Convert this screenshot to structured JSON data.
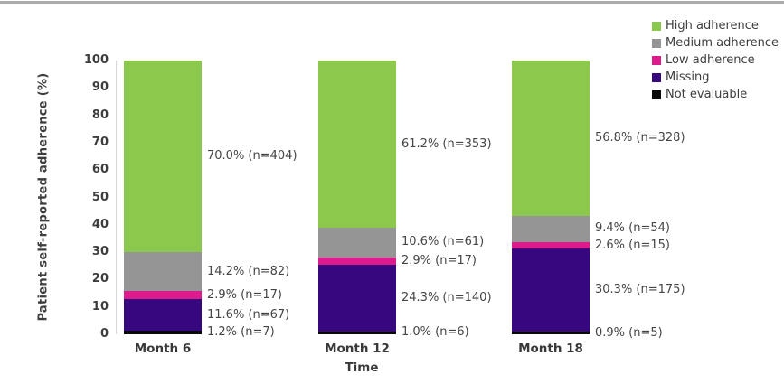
{
  "chart_data": {
    "type": "bar",
    "variant": "stacked-percent",
    "title": "",
    "xlabel": "Time",
    "ylabel": "Patient self-reported adherence (%)",
    "ylim": [
      0,
      100
    ],
    "yticks": [
      0,
      10,
      20,
      30,
      40,
      50,
      60,
      70,
      80,
      90,
      100
    ],
    "grid": false,
    "legend_position": "top-right",
    "categories": [
      "Month 6",
      "Month 12",
      "Month 18"
    ],
    "series": [
      {
        "name": "High adherence",
        "color": "#8cc84b",
        "values": [
          70.0,
          61.2,
          56.8
        ],
        "counts": [
          404,
          353,
          328
        ],
        "labels": [
          "70.0% (n=404)",
          "61.2% (n=353)",
          "56.8% (n=328)"
        ]
      },
      {
        "name": "Medium adherence",
        "color": "#959595",
        "values": [
          14.2,
          10.6,
          9.4
        ],
        "counts": [
          82,
          61,
          54
        ],
        "labels": [
          "14.2% (n=82)",
          "10.6% (n=61)",
          "9.4% (n=54)"
        ]
      },
      {
        "name": "Low adherence",
        "color": "#de1b8c",
        "values": [
          2.9,
          2.9,
          2.6
        ],
        "counts": [
          17,
          17,
          15
        ],
        "labels": [
          "2.9% (n=17)",
          "2.9% (n=17)",
          "2.6% (n=15)"
        ]
      },
      {
        "name": "Missing",
        "color": "#36077e",
        "values": [
          11.6,
          24.3,
          30.3
        ],
        "counts": [
          67,
          140,
          175
        ],
        "labels": [
          "11.6% (n=67)",
          "24.3% (n=140)",
          "30.3% (n=175)"
        ]
      },
      {
        "name": "Not evaluable",
        "color": "#0a0a0a",
        "values": [
          1.2,
          1.0,
          0.9
        ],
        "counts": [
          7,
          6,
          5
        ],
        "labels": [
          "1.2% (n=7)",
          "1.0% (n=6)",
          "0.9% (n=5)"
        ]
      }
    ]
  }
}
